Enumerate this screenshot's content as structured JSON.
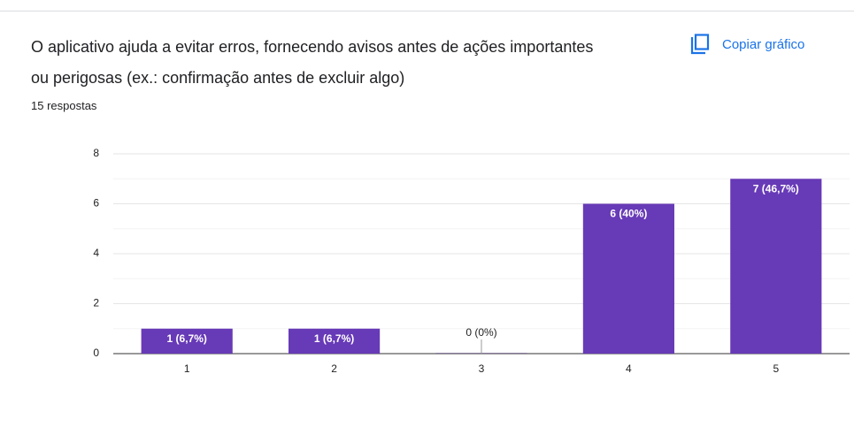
{
  "header": {
    "copy_button": "Copiar gráfico"
  },
  "chart_data": {
    "type": "bar",
    "title": "O aplicativo ajuda a evitar erros, fornecendo avisos antes de ações importantes ou perigosas (ex.: confirmação antes de excluir algo)",
    "subtitle": "15 respostas",
    "categories": [
      "1",
      "2",
      "3",
      "4",
      "5"
    ],
    "values": [
      1,
      1,
      0,
      6,
      7
    ],
    "value_labels": [
      "1 (6,7%)",
      "1 (6,7%)",
      "0 (0%)",
      "6 (40%)",
      "7 (46,7%)"
    ],
    "color": "#673ab7",
    "ylim": [
      0,
      8
    ],
    "yticks": [
      0,
      2,
      4,
      6,
      8
    ],
    "minor_yticks": [
      1,
      3,
      5,
      7
    ],
    "grid": true
  }
}
